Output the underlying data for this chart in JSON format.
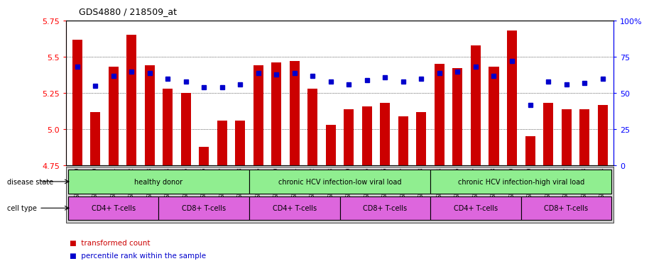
{
  "title": "GDS4880 / 218509_at",
  "samples": [
    "GSM1210739",
    "GSM1210740",
    "GSM1210741",
    "GSM1210742",
    "GSM1210743",
    "GSM1210754",
    "GSM1210755",
    "GSM1210756",
    "GSM1210757",
    "GSM1210758",
    "GSM1210745",
    "GSM1210750",
    "GSM1210751",
    "GSM1210752",
    "GSM1210753",
    "GSM1210760",
    "GSM1210765",
    "GSM1210766",
    "GSM1210767",
    "GSM1210768",
    "GSM1210744",
    "GSM1210746",
    "GSM1210747",
    "GSM1210748",
    "GSM1210749",
    "GSM1210759",
    "GSM1210761",
    "GSM1210762",
    "GSM1210763",
    "GSM1210764"
  ],
  "transformed_count": [
    5.62,
    5.12,
    5.43,
    5.65,
    5.44,
    5.28,
    5.25,
    4.88,
    5.06,
    5.06,
    5.44,
    5.46,
    5.47,
    5.28,
    5.03,
    5.14,
    5.16,
    5.18,
    5.09,
    5.12,
    5.45,
    5.42,
    5.58,
    5.43,
    5.68,
    4.95,
    5.18,
    5.14,
    5.14,
    5.17
  ],
  "percentile": [
    68,
    55,
    62,
    65,
    64,
    60,
    58,
    54,
    54,
    56,
    64,
    63,
    64,
    62,
    58,
    56,
    59,
    61,
    58,
    60,
    64,
    65,
    68,
    62,
    72,
    42,
    58,
    56,
    57,
    60
  ],
  "y_min": 4.75,
  "y_max": 5.75,
  "y_ticks": [
    4.75,
    5.0,
    5.25,
    5.5,
    5.75
  ],
  "y_right_ticks": [
    0,
    25,
    50,
    75,
    100
  ],
  "bar_color": "#cc0000",
  "dot_color": "#0000cc",
  "green_color": "#90ee90",
  "purple_color": "#dd66dd",
  "gray_bg": "#cccccc",
  "disease_blocks": [
    {
      "label": "healthy donor",
      "start": 0,
      "end": 9
    },
    {
      "label": "chronic HCV infection-low viral load",
      "start": 10,
      "end": 19
    },
    {
      "label": "chronic HCV infection-high viral load",
      "start": 20,
      "end": 29
    }
  ],
  "cell_blocks": [
    {
      "label": "CD4+ T-cells",
      "start": 0,
      "end": 4
    },
    {
      "label": "CD8+ T-cells",
      "start": 5,
      "end": 9
    },
    {
      "label": "CD4+ T-cells",
      "start": 10,
      "end": 14
    },
    {
      "label": "CD8+ T-cells",
      "start": 15,
      "end": 19
    },
    {
      "label": "CD4+ T-cells",
      "start": 20,
      "end": 24
    },
    {
      "label": "CD8+ T-cells",
      "start": 25,
      "end": 29
    }
  ],
  "disease_state_label": "disease state",
  "cell_type_label": "cell type",
  "legend_bar": "transformed count",
  "legend_dot": "percentile rank within the sample"
}
